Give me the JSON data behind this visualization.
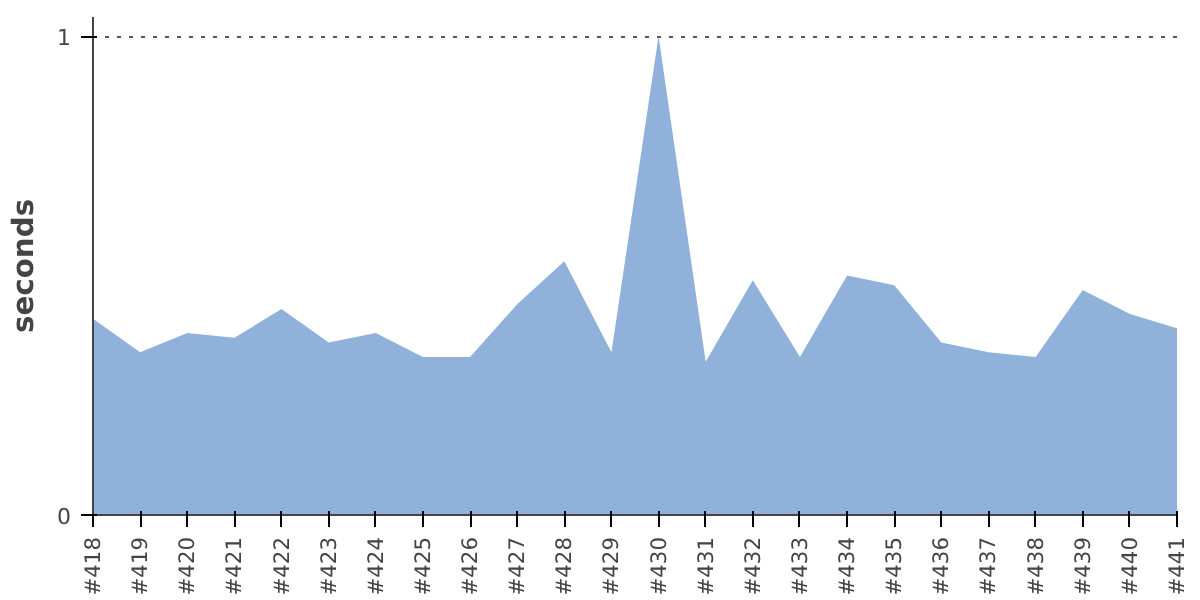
{
  "chart_data": {
    "type": "area",
    "ylabel": "seconds",
    "categories": [
      "#418",
      "#419",
      "#420",
      "#421",
      "#422",
      "#423",
      "#424",
      "#425",
      "#426",
      "#427",
      "#428",
      "#429",
      "#430",
      "#431",
      "#432",
      "#433",
      "#434",
      "#435",
      "#436",
      "#437",
      "#438",
      "#439",
      "#440",
      "#441"
    ],
    "series": [
      {
        "color": "#8fb1da",
        "values": [
          0.41,
          0.34,
          0.38,
          0.37,
          0.43,
          0.36,
          0.38,
          0.33,
          0.33,
          0.44,
          0.53,
          0.34,
          1.0,
          0.32,
          0.49,
          0.33,
          0.5,
          0.48,
          0.36,
          0.34,
          0.33,
          0.47,
          0.42,
          0.39
        ]
      }
    ],
    "ylim": [
      0,
      1.04
    ],
    "yticks": [
      0,
      1
    ],
    "grid": "y",
    "line_style": "dotted"
  }
}
